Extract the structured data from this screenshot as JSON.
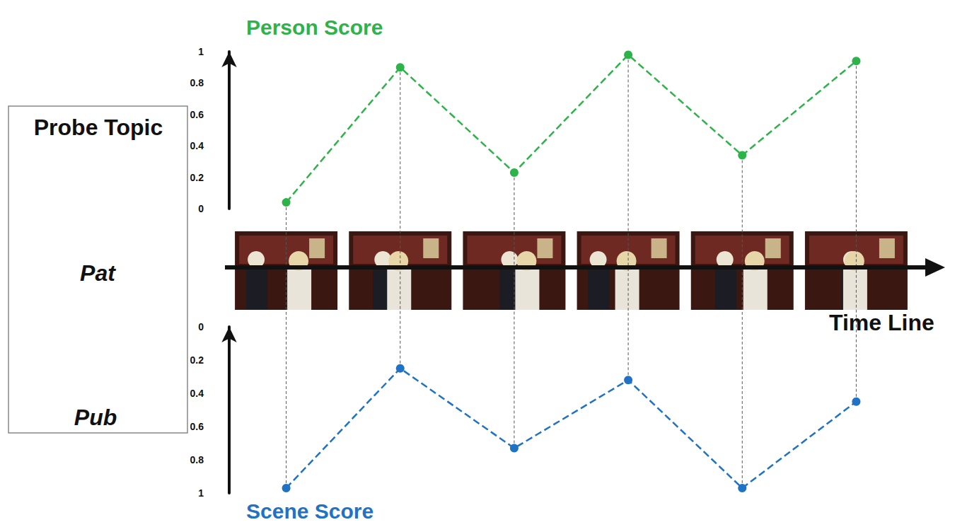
{
  "chart_data": [
    {
      "type": "line",
      "title": "Person Score",
      "categories": [
        null,
        null,
        null,
        null,
        null,
        null
      ],
      "ylim": [
        0,
        1
      ],
      "yticks": [
        0,
        0.2,
        0.4,
        0.6,
        0.8,
        1
      ],
      "grid": false,
      "tick_labels": "y",
      "series": [
        {
          "name": "Person Score",
          "color": "#2db34a",
          "marker": "circle",
          "line_style": "dashed",
          "values": [
            0.04,
            0.9,
            0.23,
            0.98,
            0.34,
            0.94
          ]
        }
      ]
    },
    {
      "type": "line",
      "title": "Scene Score",
      "categories": [
        null,
        null,
        null,
        null,
        null,
        null
      ],
      "ylim": [
        1,
        0
      ],
      "yticks": [
        0,
        0.2,
        0.4,
        0.6,
        0.8,
        1
      ],
      "grid": false,
      "tick_labels": "y",
      "series": [
        {
          "name": "Scene Score",
          "color": "#1f72c4",
          "marker": "circle",
          "line_style": "dashed",
          "values": [
            0.97,
            0.25,
            0.73,
            0.32,
            0.97,
            0.45
          ]
        }
      ]
    }
  ],
  "probe_topic": {
    "title": "Probe Topic",
    "items": [
      {
        "label": "Pat"
      },
      {
        "label": "Pub"
      }
    ]
  },
  "timeline_label": "Time Line"
}
